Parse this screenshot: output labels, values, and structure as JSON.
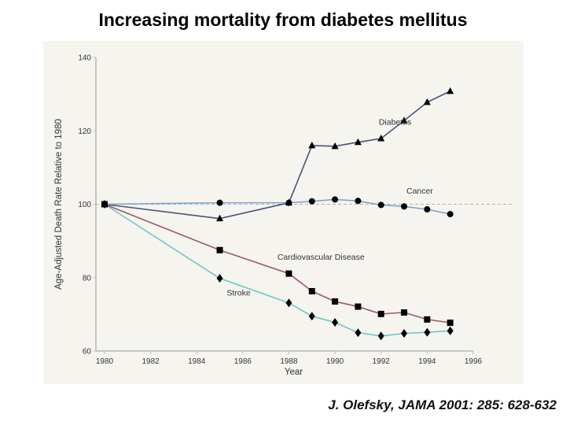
{
  "page": {
    "title": "Increasing mortality from diabetes mellitus",
    "citation": "J. Olefsky, JAMA 2001: 285: 628-632"
  },
  "chart_data": {
    "type": "line",
    "title": "Increasing mortality from diabetes mellitus",
    "xlabel": "Year",
    "ylabel": "Age-Adjusted Death Rate Relative to 1980",
    "xlim": [
      1980,
      1996
    ],
    "ylim": [
      60,
      140
    ],
    "xticks": [
      1980,
      1982,
      1984,
      1986,
      1988,
      1990,
      1992,
      1994,
      1996
    ],
    "yticks": [
      60,
      80,
      100,
      120,
      140
    ],
    "reference_line": {
      "y": 100,
      "style": "dashed"
    },
    "grid": false,
    "legend": "inline labels",
    "colors": {
      "background": "#f5f4ef",
      "axis": "#b8b8b8",
      "reference": "#b0b0b0"
    },
    "series": [
      {
        "name": "Diabetes",
        "marker": "triangle",
        "color": "#4d4f7a",
        "x": [
          1980,
          1985,
          1988,
          1989,
          1990,
          1991,
          1992,
          1993,
          1994,
          1995
        ],
        "values": [
          100,
          96.1,
          100.4,
          116,
          115.8,
          116.9,
          117.9,
          122.8,
          127.8,
          130.8
        ],
        "label_at": [
          1991.9,
          121.7
        ]
      },
      {
        "name": "Cancer",
        "marker": "circle",
        "color": "#7ea6c9",
        "x": [
          1980,
          1985,
          1988,
          1989,
          1990,
          1991,
          1992,
          1993,
          1994,
          1995
        ],
        "values": [
          100,
          100.4,
          100.4,
          100.8,
          101.3,
          100.9,
          99.8,
          99.4,
          98.6,
          97.3
        ],
        "label_at": [
          1993.1,
          102.9
        ]
      },
      {
        "name": "Cardiovascular Disease",
        "marker": "square",
        "color": "#9b5a6a",
        "x": [
          1980,
          1985,
          1988,
          1989,
          1990,
          1991,
          1992,
          1993,
          1994,
          1995
        ],
        "values": [
          100,
          87.5,
          81.1,
          76.3,
          73.5,
          72.1,
          70.1,
          70.5,
          68.6,
          67.7
        ],
        "label_at": [
          1987.5,
          84.9
        ]
      },
      {
        "name": "Stroke",
        "marker": "diamond",
        "color": "#6ec6c8",
        "x": [
          1980,
          1985,
          1988,
          1989,
          1990,
          1991,
          1992,
          1993,
          1994,
          1995
        ],
        "values": [
          100,
          79.8,
          73.1,
          69.5,
          67.8,
          65.0,
          64.1,
          64.8,
          65.1,
          65.5
        ],
        "label_at": [
          1985.3,
          75.1
        ]
      }
    ]
  }
}
